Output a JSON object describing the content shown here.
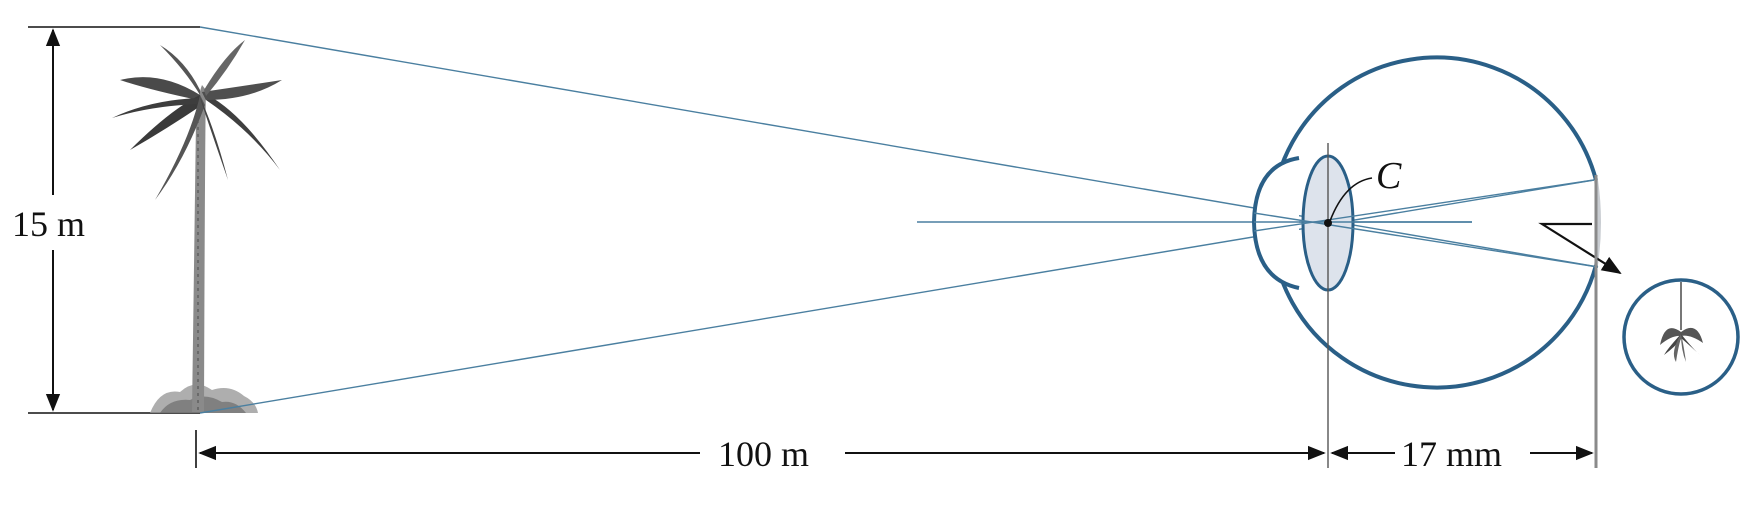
{
  "labels": {
    "height": "15 m",
    "object_distance": "100 m",
    "image_distance": "17 mm",
    "lens_center": "C"
  },
  "colors": {
    "ray": "#4a7fa0",
    "eye_outline": "#2a5f87",
    "lens_fill": "#dde3ec",
    "arrow": "#111111",
    "retina_band": "#c9cdd2"
  },
  "icons": {
    "object": "palm-tree-icon",
    "retinal_image": "inverted-palm-tree-icon"
  }
}
